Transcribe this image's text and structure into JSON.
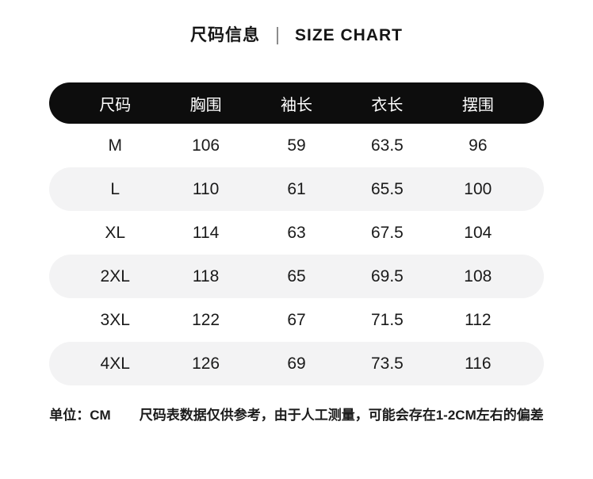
{
  "title": {
    "zh": "尺码信息",
    "en": "SIZE CHART"
  },
  "table": {
    "headers": [
      "尺码",
      "胸围",
      "袖长",
      "衣长",
      "摆围"
    ],
    "rows": [
      [
        "M",
        "106",
        "59",
        "63.5",
        "96"
      ],
      [
        "L",
        "110",
        "61",
        "65.5",
        "100"
      ],
      [
        "XL",
        "114",
        "63",
        "67.5",
        "104"
      ],
      [
        "2XL",
        "118",
        "65",
        "69.5",
        "108"
      ],
      [
        "3XL",
        "122",
        "67",
        "71.5",
        "112"
      ],
      [
        "4XL",
        "126",
        "69",
        "73.5",
        "116"
      ]
    ]
  },
  "footer": {
    "unit_label": "单位：CM",
    "note": "尺码表数据仅供参考，由于人工测量，可能会存在1-2CM左右的偏差"
  },
  "colors": {
    "header_bg": "#0d0d0d",
    "header_text": "#ffffff",
    "row_alt_bg": "#f3f3f4",
    "text": "#1a1a1a",
    "divider": "#8c8c8c"
  }
}
